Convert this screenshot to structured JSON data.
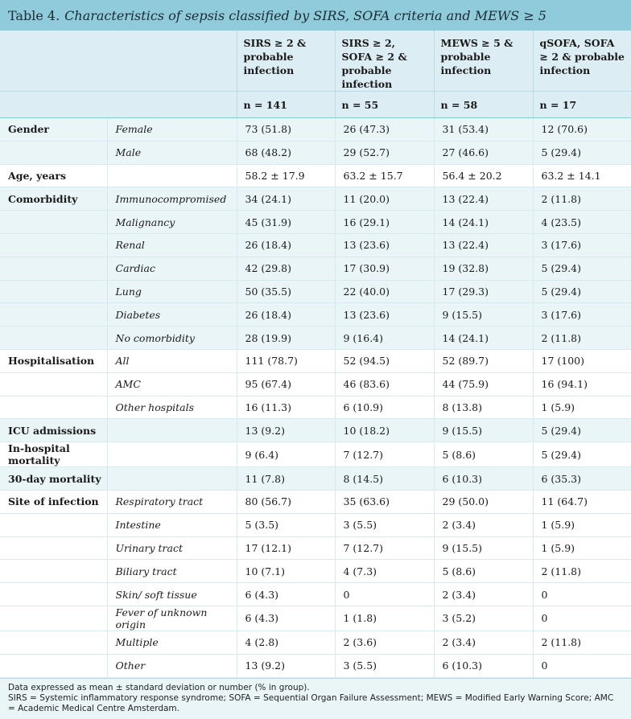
{
  "title": {
    "number": "Table 4.",
    "caption": "Characteristics of sepsis classified by SIRS, SOFA criteria and MEWS ≥ 5"
  },
  "columns": [
    {
      "label": "SIRS ≥ 2 & probable infection",
      "n": "n = 141"
    },
    {
      "label": "SIRS ≥ 2, SOFA ≥ 2 & probable infection",
      "n": "n = 55"
    },
    {
      "label": "MEWS ≥ 5 & probable infection",
      "n": "n = 58"
    },
    {
      "label": "qSOFA, SOFA ≥ 2 & probable infection",
      "n": "n = 17"
    }
  ],
  "groups": [
    {
      "category": "Gender",
      "rows": [
        {
          "sub": "Female",
          "values": [
            "73 (51.8)",
            "26 (47.3)",
            "31 (53.4)",
            "12 (70.6)"
          ]
        },
        {
          "sub": "Male",
          "values": [
            "68 (48.2)",
            "29 (52.7)",
            "27 (46.6)",
            "5 (29.4)"
          ]
        }
      ]
    },
    {
      "category": "Age, years",
      "rows": [
        {
          "sub": "",
          "values": [
            "58.2 ± 17.9",
            "63.2 ± 15.7",
            "56.4 ± 20.2",
            "63.2 ± 14.1"
          ]
        }
      ]
    },
    {
      "category": "Comorbidity",
      "rows": [
        {
          "sub": "Immunocompromised",
          "values": [
            "34 (24.1)",
            "11 (20.0)",
            "13 (22.4)",
            "2 (11.8)"
          ]
        },
        {
          "sub": "Malignancy",
          "values": [
            "45 (31.9)",
            "16 (29.1)",
            "14 (24.1)",
            "4 (23.5)"
          ]
        },
        {
          "sub": "Renal",
          "values": [
            "26 (18.4)",
            "13 (23.6)",
            "13 (22.4)",
            "3 (17.6)"
          ]
        },
        {
          "sub": "Cardiac",
          "values": [
            "42 (29.8)",
            "17 (30.9)",
            "19 (32.8)",
            "5 (29.4)"
          ]
        },
        {
          "sub": "Lung",
          "values": [
            "50 (35.5)",
            "22 (40.0)",
            "17 (29.3)",
            "5 (29.4)"
          ]
        },
        {
          "sub": "Diabetes",
          "values": [
            "26 (18.4)",
            "13 (23.6)",
            "9 (15.5)",
            "3 (17.6)"
          ]
        },
        {
          "sub": "No comorbidity",
          "values": [
            "28 (19.9)",
            "9 (16.4)",
            "14 (24.1)",
            "2 (11.8)"
          ]
        }
      ]
    },
    {
      "category": "Hospitalisation",
      "rows": [
        {
          "sub": "All",
          "values": [
            "111 (78.7)",
            "52 (94.5)",
            "52 (89.7)",
            "17 (100)"
          ]
        },
        {
          "sub": "AMC",
          "values": [
            "95 (67.4)",
            "46 (83.6)",
            "44 (75.9)",
            "16 (94.1)"
          ]
        },
        {
          "sub": "Other hospitals",
          "values": [
            "16 (11.3)",
            "6 (10.9)",
            "8 (13.8)",
            "1 (5.9)"
          ]
        }
      ]
    },
    {
      "category": "ICU admissions",
      "rows": [
        {
          "sub": "",
          "values": [
            "13 (9.2)",
            "10 (18.2)",
            "9 (15.5)",
            "5 (29.4)"
          ]
        }
      ]
    },
    {
      "category": "In-hospital mortality",
      "rows": [
        {
          "sub": "",
          "values": [
            "9 (6.4)",
            "7 (12.7)",
            "5 (8.6)",
            "5 (29.4)"
          ]
        }
      ]
    },
    {
      "category": "30-day mortality",
      "rows": [
        {
          "sub": "",
          "values": [
            "11 (7.8)",
            "8 (14.5)",
            "6 (10.3)",
            "6 (35.3)"
          ]
        }
      ]
    },
    {
      "category": "Site of infection",
      "rows": [
        {
          "sub": "Respiratory tract",
          "values": [
            "80 (56.7)",
            "35 (63.6)",
            "29 (50.0)",
            "11 (64.7)"
          ]
        },
        {
          "sub": "Intestine",
          "values": [
            "5 (3.5)",
            "3 (5.5)",
            "2 (3.4)",
            "1 (5.9)"
          ]
        },
        {
          "sub": "Urinary tract",
          "values": [
            "17 (12.1)",
            "7 (12.7)",
            "9 (15.5)",
            "1 (5.9)"
          ]
        },
        {
          "sub": "Biliary tract",
          "values": [
            "10 (7.1)",
            "4 (7.3)",
            "5 (8.6)",
            "2 (11.8)"
          ]
        },
        {
          "sub": "Skin/ soft tissue",
          "values": [
            "6 (4.3)",
            "0",
            "2 (3.4)",
            "0"
          ]
        },
        {
          "sub": "Fever of unknown origin",
          "values": [
            "6 (4.3)",
            "1 (1.8)",
            "3 (5.2)",
            "0"
          ]
        },
        {
          "sub": "Multiple",
          "values": [
            "4 (2.8)",
            "2 (3.6)",
            "2 (3.4)",
            "2 (11.8)"
          ]
        },
        {
          "sub": "Other",
          "values": [
            "13 (9.2)",
            "3 (5.5)",
            "6 (10.3)",
            "0"
          ]
        }
      ]
    }
  ],
  "footnote": {
    "line1": "Data expressed as mean ± standard deviation or number (% in group).",
    "line2": "SIRS = Systemic inflammatory response syndrome; SOFA = Sequential Organ Failure Assessment; MEWS = Modified Early Warning Score; AMC = Academic Medical Centre Amsterdam."
  },
  "colors": {
    "title_bar": "#8fcbdb",
    "header_bg": "#dceef4",
    "alt_group_bg": "#eaf5f8",
    "rule": "#d7eaf0"
  }
}
